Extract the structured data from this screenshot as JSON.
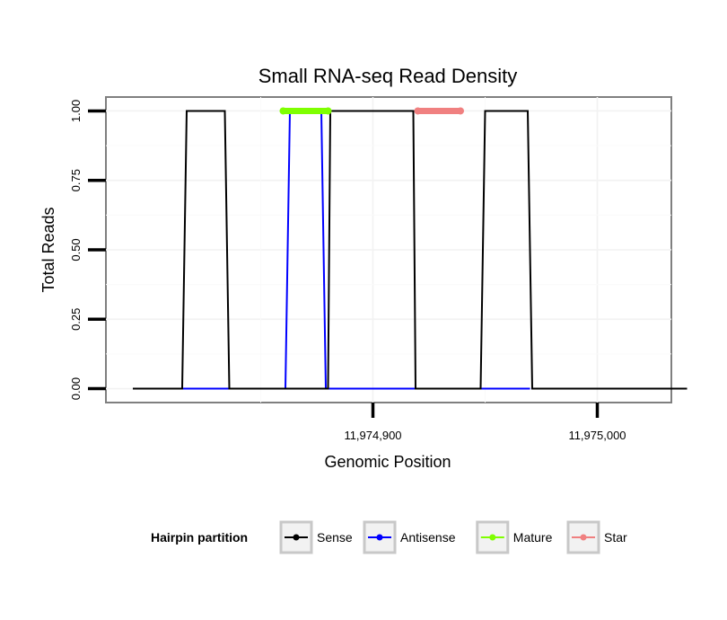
{
  "chart_data": {
    "type": "line",
    "title": "Small RNA-seq Read Density",
    "xlabel": "Genomic Position",
    "ylabel": "Total Reads",
    "xlim": [
      11974781,
      11975033
    ],
    "ylim": [
      -0.05,
      1.05
    ],
    "x_ticks": [
      11974900,
      11975000
    ],
    "x_tick_labels": [
      "11,974,900",
      "11,975,000"
    ],
    "y_ticks": [
      0,
      0.25,
      0.5,
      0.75,
      1
    ],
    "y_tick_labels": [
      "0.00",
      "0.25",
      "0.50",
      "0.75",
      "1.00"
    ],
    "grid": true,
    "series": [
      {
        "name": "Sense",
        "color": "#000000",
        "x": [
          11974793,
          11974815,
          11974817,
          11974834,
          11974836,
          11974860,
          11974861,
          11974880,
          11974881,
          11974918,
          11974919,
          11974948,
          11974950,
          11974969,
          11974971,
          11975040
        ],
        "y": [
          0,
          0,
          1,
          1,
          0,
          0,
          0,
          0,
          1,
          1,
          0,
          0,
          1,
          1,
          0,
          0
        ]
      },
      {
        "name": "Antisense",
        "color": "#0000ff",
        "x": [
          11974815,
          11974834,
          11974859,
          11974861,
          11974863,
          11974877,
          11974879,
          11974881,
          11974949,
          11974970
        ],
        "y": [
          0,
          0,
          0,
          0,
          1,
          1,
          0,
          0,
          0,
          0
        ]
      },
      {
        "name": "Mature",
        "color": "#7fff00",
        "x": [
          11974860,
          11974880
        ],
        "y": [
          1,
          1
        ]
      },
      {
        "name": "Star",
        "color": "#f08080",
        "x": [
          11974920,
          11974939
        ],
        "y": [
          1,
          1
        ]
      }
    ],
    "legend": {
      "title": "Hairpin partition",
      "position": "bottom",
      "items": [
        "Sense",
        "Antisense",
        "Mature",
        "Star"
      ]
    }
  }
}
